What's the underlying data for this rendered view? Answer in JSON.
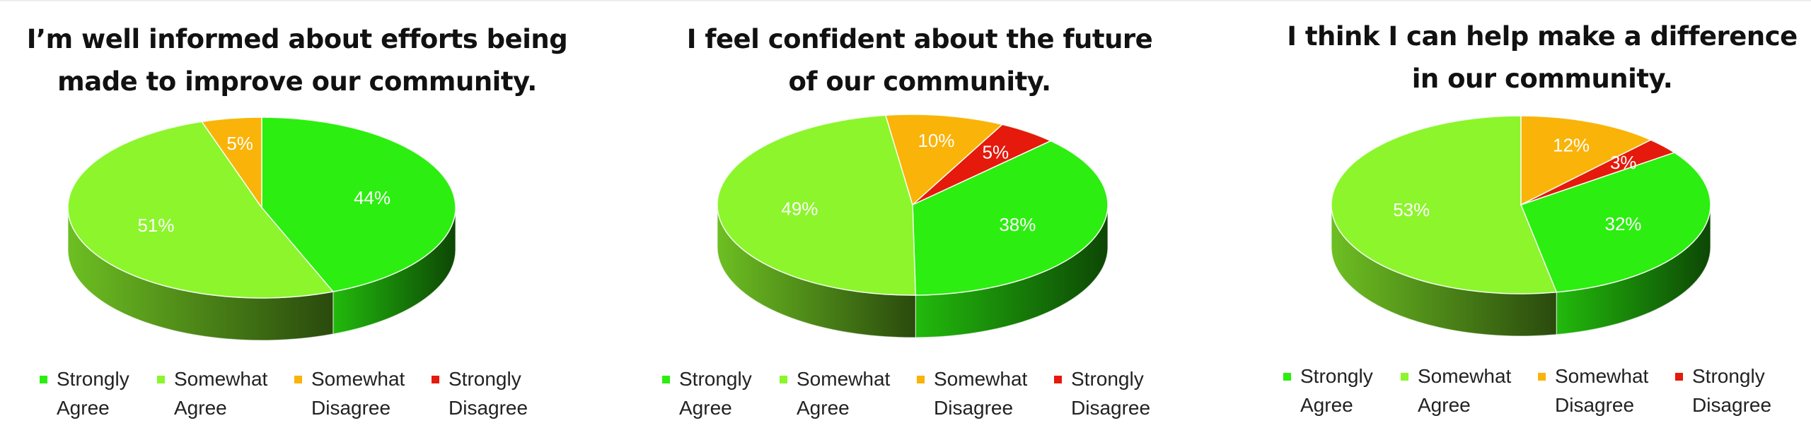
{
  "legend": [
    {
      "line1": "Strongly",
      "line2": "Agree",
      "color": "#2cee10"
    },
    {
      "line1": "Somewhat",
      "line2": "Agree",
      "color": "#8cf52c"
    },
    {
      "line1": "Somewhat",
      "line2": "Disagree",
      "color": "#fab308"
    },
    {
      "line1": "Strongly",
      "line2": "Disagree",
      "color": "#e5190c"
    }
  ],
  "chart_data": [
    {
      "type": "pie",
      "title": [
        "I’m well informed about efforts being",
        "made to improve our community."
      ],
      "categories": [
        "Strongly Agree",
        "Somewhat Agree",
        "Somewhat Disagree",
        "Strongly Disagree"
      ],
      "values": [
        44,
        51,
        5,
        0
      ],
      "labels": [
        "44%",
        "51%",
        "5%",
        ""
      ],
      "legend_position": "bottom"
    },
    {
      "type": "pie",
      "title": [
        "I feel confident about the future",
        "of our community."
      ],
      "categories": [
        "Strongly Agree",
        "Somewhat Agree",
        "Somewhat Disagree",
        "Strongly Disagree"
      ],
      "values": [
        38,
        49,
        10,
        5
      ],
      "labels": [
        "38%",
        "49%",
        "10%",
        "5%"
      ],
      "legend_position": "bottom"
    },
    {
      "type": "pie",
      "title": [
        "I think I can help make a difference",
        "in our community."
      ],
      "categories": [
        "Strongly Agree",
        "Somewhat Agree",
        "Somewhat Disagree",
        "Strongly Disagree"
      ],
      "values": [
        32,
        53,
        12,
        3
      ],
      "labels": [
        "32%",
        "53%",
        "12%",
        "3%"
      ],
      "legend_position": "bottom"
    }
  ]
}
